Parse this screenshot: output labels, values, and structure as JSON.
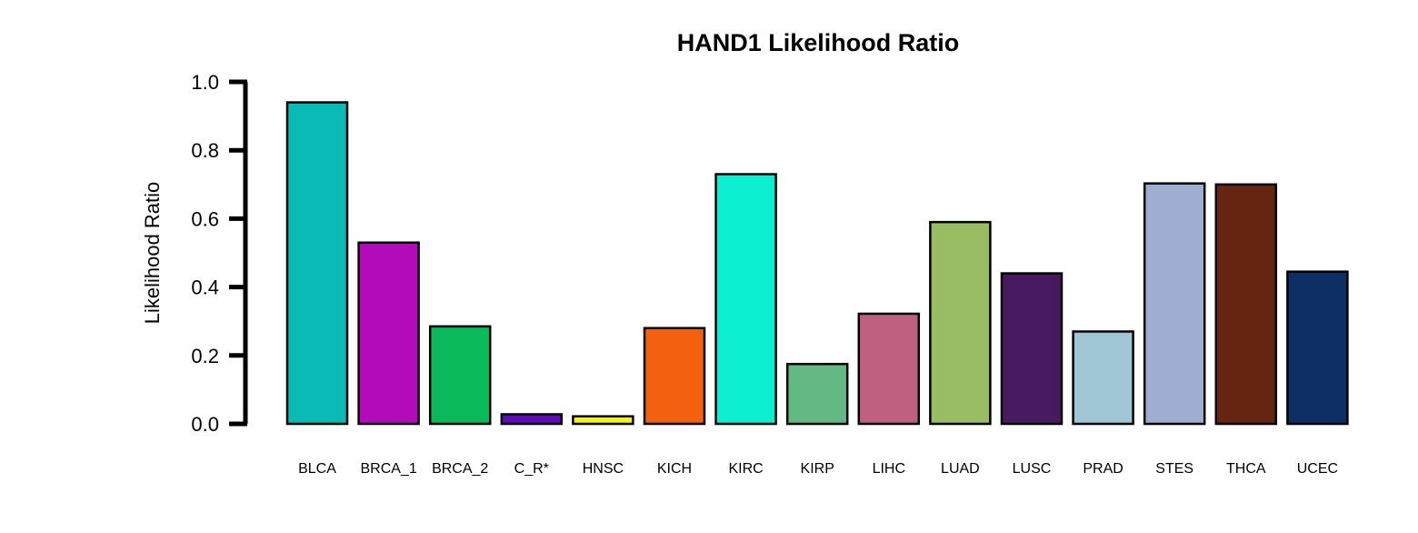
{
  "chart_data": {
    "type": "bar",
    "title": "HAND1 Likelihood Ratio",
    "xlabel": "",
    "ylabel": "Likelihood Ratio",
    "ylim": [
      0,
      1.0
    ],
    "yticks": [
      "0.0",
      "0.2",
      "0.4",
      "0.6",
      "0.8",
      "1.0"
    ],
    "grid": false,
    "categories": [
      "BLCA",
      "BRCA_1",
      "BRCA_2",
      "C_R*",
      "HNSC",
      "KICH",
      "KIRC",
      "KIRP",
      "LIHC",
      "LUAD",
      "LUSC",
      "PRAD",
      "STES",
      "THCA",
      "UCEC"
    ],
    "values": [
      0.94,
      0.53,
      0.285,
      0.028,
      0.022,
      0.28,
      0.73,
      0.175,
      0.322,
      0.59,
      0.44,
      0.27,
      0.703,
      0.7,
      0.445
    ],
    "colors": [
      "#0ABAB5",
      "#B30BBA",
      "#0ABA5A",
      "#5F0BBA",
      "#F5F50A",
      "#F26010",
      "#0DF0D0",
      "#62BA82",
      "#BF6080",
      "#98BD62",
      "#481A60",
      "#A0C6D4",
      "#A0AED2",
      "#662412",
      "#0E2E66"
    ]
  }
}
